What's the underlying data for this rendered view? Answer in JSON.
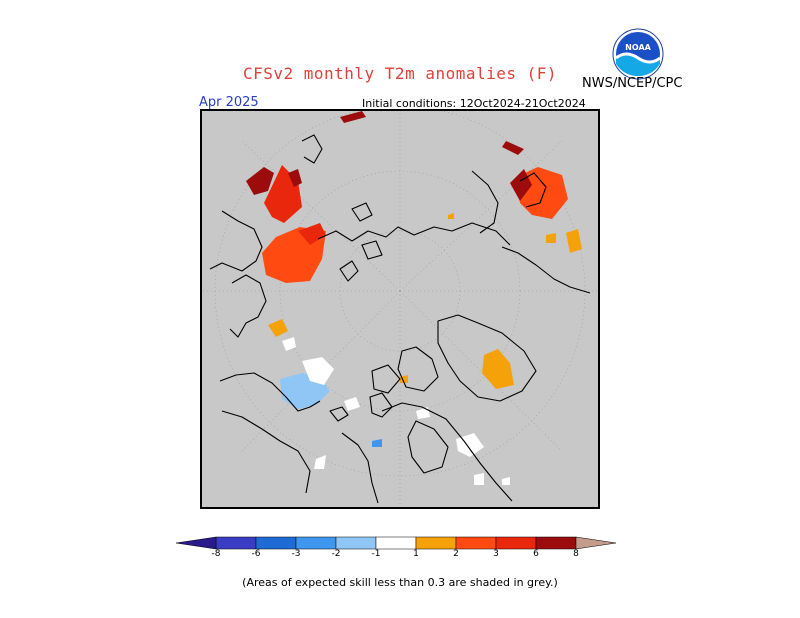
{
  "header": {
    "title": "CFSv2 monthly T2m anomalies (F)",
    "organization": "NWS/NCEP/CPC",
    "logo_text": "NOAA",
    "month": "Apr 2025",
    "initial_conditions": "Initial conditions: 12Oct2024-21Oct2024"
  },
  "colorbar": {
    "labels": [
      "-8",
      "-6",
      "-3",
      "-2",
      "-1",
      "1",
      "2",
      "3",
      "6",
      "8"
    ],
    "colors": {
      "lt_-8": "#2a1a8c",
      "-8_-6": "#3b3cc4",
      "-6_-3": "#1f6bd6",
      "-3_-2": "#3f96ee",
      "-2_-1": "#8fc6f5",
      "-1_1": "#ffffff",
      "1_2": "#f5a10a",
      "2_3": "#ff4a12",
      "3_6": "#e8270c",
      "6_8": "#9c0c0c",
      "gt_8": "#c59b8c"
    }
  },
  "map": {
    "projection": "polar stereographic",
    "background_color": "#c8c8c8",
    "coastline_color": "#000000"
  },
  "footnote": "(Areas of expected skill less than 0.3 are shaded in grey.)"
}
